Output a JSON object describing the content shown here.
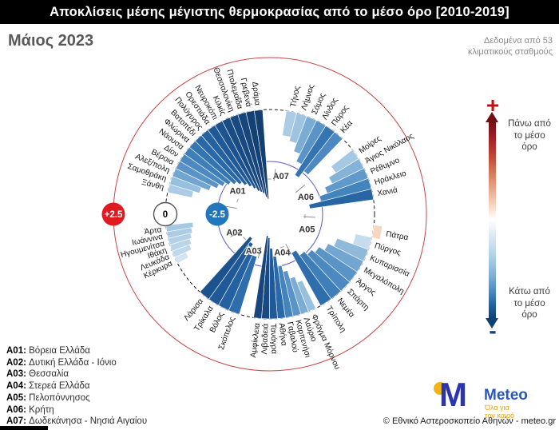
{
  "title": "Αποκλίσεις μέσης μέγιστης θερμοκρασίας από το μέσο όρο [2010-2019]",
  "subtitle": "Μάιος 2023",
  "data_note": "Δεδομένα από 53\nκλιματικούς σταθμούς",
  "color_legend": {
    "plus": "+",
    "minus": "-",
    "above": "Πάνω από\nτο μέσο\nόρο",
    "below": "Κάτω από\nτο μέσο\nόρο"
  },
  "region_legend": [
    {
      "code": "A01:",
      "name": "Βόρεια Ελλάδα"
    },
    {
      "code": "A02:",
      "name": "Δυτική Ελλάδα - Ιόνιο"
    },
    {
      "code": "A03:",
      "name": "Θεσσαλία"
    },
    {
      "code": "A04:",
      "name": "Στερεά Ελλάδα"
    },
    {
      "code": "A05:",
      "name": "Πελοπόννησος"
    },
    {
      "code": "A06:",
      "name": "Κρήτη"
    },
    {
      "code": "A07:",
      "name": "Δωδεκάνησα - Νησιά Αιγαίου"
    }
  ],
  "logo": {
    "m": "M",
    "name": "Meteo",
    "tagline": "Όλα για\nτον καιρό"
  },
  "copyright": "© Εθνικό Αστεροσκοπείο Αθηνών - meteo.gr",
  "chart_data": {
    "type": "radial-bar",
    "unit": "°C deviation of mean max temperature from 2010-2019 mean",
    "rings": {
      "outer_value": 2.5,
      "zero_value": 0,
      "inner_value": -2.5
    },
    "markers": {
      "plus": "+2.5",
      "zero": "0",
      "minus": "-2.5"
    },
    "marker_colors": {
      "plus": "#df1b20",
      "zero": "#ffffff",
      "minus": "#2276bb"
    },
    "ring_colors": {
      "outer": "#c94545",
      "zero": "#1a1a1a",
      "inner": "#5a5ac2"
    },
    "regions": [
      {
        "code": "A07",
        "label": "Δωδεκάνησα - Νησιά Αιγαίου",
        "start_deg": 9,
        "end_deg": 44,
        "code_angle": 16,
        "stations": [
          {
            "name": "Τήνος",
            "value": -1.2
          },
          {
            "name": "Λήμνος",
            "value": -1.4
          },
          {
            "name": "Σάμος",
            "value": -1.8
          },
          {
            "name": "Λίνδος",
            "value": -2.2
          },
          {
            "name": "Πάρος",
            "value": -2.8
          },
          {
            "name": "Κέα",
            "value": -2.4
          }
        ]
      },
      {
        "code": "A06",
        "label": "Κρήτη",
        "start_deg": 52,
        "end_deg": 82,
        "code_angle": 64,
        "stations": [
          {
            "name": "Μοίρες",
            "value": -1.3
          },
          {
            "name": "Άγιος Νικόλαος",
            "value": -1.7
          },
          {
            "name": "Ρέθυμνο",
            "value": -2.1
          },
          {
            "name": "Ηράκλειο",
            "value": -2.5
          },
          {
            "name": "Χανιά",
            "value": -3.1
          }
        ]
      },
      {
        "code": "A05",
        "label": "Πελοπόννησος",
        "start_deg": 96,
        "end_deg": 151,
        "code_angle": 112,
        "stations": [
          {
            "name": "Πάτρα",
            "value": 0.4
          },
          {
            "name": "Πύργος",
            "value": -0.8
          },
          {
            "name": "Κυπαρισσία",
            "value": -1.6
          },
          {
            "name": "Μεγαλόπολη",
            "value": -1.9
          },
          {
            "name": "Άργος",
            "value": -2.2
          },
          {
            "name": "Σπάρτη",
            "value": -2.4
          },
          {
            "name": "Νεμέα",
            "value": -2.6
          },
          {
            "name": "Τρίπολη",
            "value": -2.9
          }
        ]
      },
      {
        "code": "A04",
        "label": "Στερεά Ελλάδα",
        "start_deg": 154,
        "end_deg": 189,
        "code_angle": 162,
        "stations": [
          {
            "name": "Φράγμα Μόρνου",
            "value": -1.5
          },
          {
            "name": "Λαύριο",
            "value": -1.8
          },
          {
            "name": "Καρπενήσι",
            "value": -2.2
          },
          {
            "name": "Γαβαλού",
            "value": -2.5
          },
          {
            "name": "Αθήνα",
            "value": -3.0
          },
          {
            "name": "Τανάγρα",
            "value": -3.4
          },
          {
            "name": "Λιβαδειά",
            "value": -3.9
          },
          {
            "name": "Αμφίκλεια",
            "value": -4.0
          }
        ]
      },
      {
        "code": "A03",
        "label": "Θεσσαλία",
        "start_deg": 197,
        "end_deg": 222,
        "code_angle": 204,
        "stations": [
          {
            "name": "Σκόπελος",
            "value": -2.9
          },
          {
            "name": "Βόλος",
            "value": -3.2
          },
          {
            "name": "Τρίκαλα",
            "value": -3.4
          },
          {
            "name": "Λάρισα",
            "value": -3.6
          }
        ]
      },
      {
        "code": "A02",
        "label": "Δυτική Ελλάδα - Ιόνιο",
        "start_deg": 242,
        "end_deg": 264,
        "code_angle": 243,
        "stations": [
          {
            "name": "Κέρκυρα",
            "value": -0.6
          },
          {
            "name": "Λευκάδα",
            "value": -0.9
          },
          {
            "name": "Ιθάκη",
            "value": -1.0
          },
          {
            "name": "Ηγουμενίτσα",
            "value": -1.1
          },
          {
            "name": "Ιωάννινα",
            "value": -1.2
          },
          {
            "name": "Άρτα",
            "value": -1.3
          }
        ]
      },
      {
        "code": "A01",
        "label": "Βόρεια Ελλάδα",
        "start_deg": 282,
        "end_deg": 356,
        "code_angle": 306,
        "stations": [
          {
            "name": "Ξάνθη",
            "value": -1.2
          },
          {
            "name": "Σαμοθράκη",
            "value": -1.5
          },
          {
            "name": "Αλεξ/πολη",
            "value": -1.9
          },
          {
            "name": "Βέροια",
            "value": -2.2
          },
          {
            "name": "Δίον",
            "value": -2.4
          },
          {
            "name": "Νάουσα",
            "value": -2.6
          },
          {
            "name": "Φλώρινα",
            "value": -2.8
          },
          {
            "name": "Βατοπέδι",
            "value": -3.0
          },
          {
            "name": "Πολύγυρος",
            "value": -3.2
          },
          {
            "name": "Ορεστιάδα",
            "value": -3.4
          },
          {
            "name": "Νευροκόπι",
            "value": -3.6
          },
          {
            "name": "Κιλκίς",
            "value": -3.8
          },
          {
            "name": "Θεσσαλονίκη",
            "value": -3.9
          },
          {
            "name": "Πτολεμαΐδα",
            "value": -4.0
          },
          {
            "name": "Γρεβενά",
            "value": -4.2
          },
          {
            "name": "Δράμα",
            "value": -4.3
          }
        ]
      }
    ]
  }
}
